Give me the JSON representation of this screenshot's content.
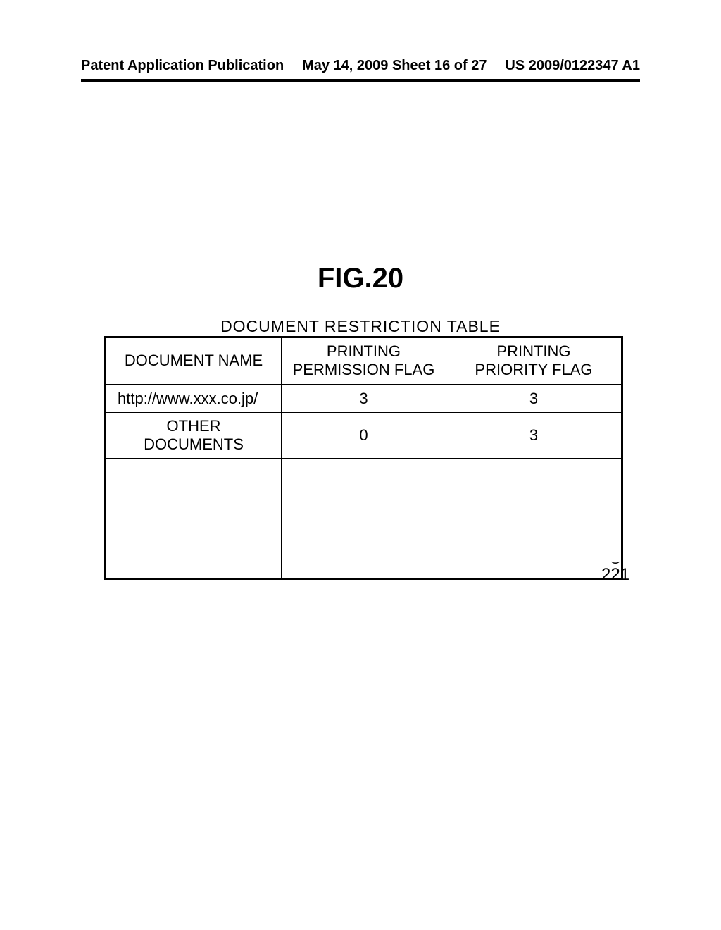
{
  "header": {
    "left": "Patent Application Publication",
    "center": "May 14, 2009  Sheet 16 of 27",
    "right": "US 2009/0122347 A1"
  },
  "figure": {
    "label": "FIG.20",
    "title": "DOCUMENT RESTRICTION TABLE",
    "reference_number": "221"
  },
  "table": {
    "columns": [
      "DOCUMENT NAME",
      "PRINTING PERMISSION FLAG",
      "PRINTING PRIORITY FLAG"
    ],
    "rows": [
      [
        "http://www.xxx.co.jp/",
        "3",
        "3"
      ],
      [
        "OTHER DOCUMENTS",
        "0",
        "3"
      ]
    ]
  }
}
